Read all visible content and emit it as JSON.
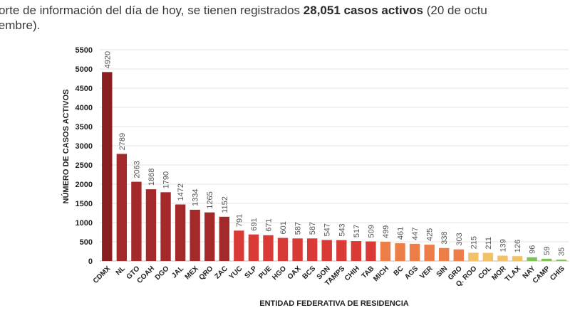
{
  "header": {
    "line1_pre": "orte de información del día de hoy, se tienen registrados ",
    "line1_bold": "28,051 casos activos",
    "line1_post": " (20 de octu",
    "line2": "iembre)."
  },
  "chart_data": {
    "type": "bar",
    "xlabel": "ENTIDAD FEDERATIVA DE RESIDENCIA",
    "ylabel": "NÚMERO DE CASOS ACTIVOS",
    "ylim": [
      0,
      5500
    ],
    "yticks": [
      0,
      500,
      1000,
      1500,
      2000,
      2500,
      3000,
      3500,
      4000,
      4500,
      5000,
      5500
    ],
    "grid": true,
    "categories": [
      "CDMX",
      "NL",
      "GTO",
      "COAH",
      "DGO",
      "JAL",
      "MEX",
      "QRO",
      "ZAC",
      "YUC",
      "SLP",
      "PUE",
      "HGO",
      "OAX",
      "BCS",
      "SON",
      "TAMPS",
      "CHIH",
      "TAB",
      "MICH",
      "BC",
      "AGS",
      "VER",
      "SIN",
      "GRO",
      "Q. ROO",
      "COL",
      "MOR",
      "TLAX",
      "NAY",
      "CAMP",
      "CHIS"
    ],
    "values": [
      4920,
      2789,
      2063,
      1868,
      1790,
      1472,
      1334,
      1265,
      1152,
      791,
      691,
      671,
      601,
      587,
      587,
      547,
      543,
      517,
      509,
      499,
      461,
      447,
      425,
      338,
      303,
      215,
      211,
      139,
      126,
      96,
      59,
      35
    ],
    "colors": [
      "#8b1f1f",
      "#a3292a",
      "#a3292a",
      "#a3292a",
      "#a3292a",
      "#a3292a",
      "#a3292a",
      "#a3292a",
      "#a3292a",
      "#d93a36",
      "#d93a36",
      "#d93a36",
      "#d93a36",
      "#d93a36",
      "#d93a36",
      "#d93a36",
      "#d93a36",
      "#d93a36",
      "#d93a36",
      "#ee7e47",
      "#ee7e47",
      "#ee7e47",
      "#ee7e47",
      "#ee7e47",
      "#ee7e47",
      "#f2c26a",
      "#f2c26a",
      "#f2c26a",
      "#f2c26a",
      "#82bf58",
      "#82bf58",
      "#82bf58"
    ]
  }
}
